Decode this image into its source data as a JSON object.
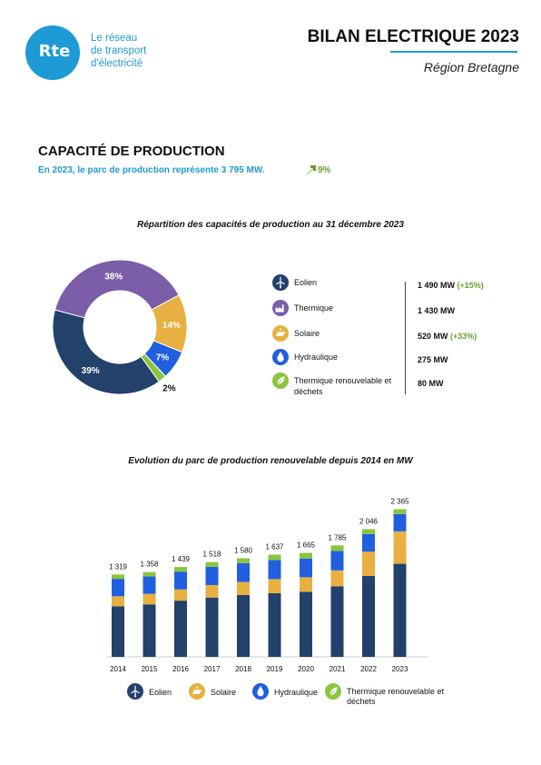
{
  "header": {
    "logo_text": "Rte",
    "org_lines": [
      "Le réseau",
      "de transport",
      "d'électricité"
    ],
    "report_title": "BILAN ELECTRIQUE 2023",
    "region": "Région Bretagne"
  },
  "section": {
    "title": "CAPACITÉ DE PRODUCTION",
    "subtitle": "En 2023, le parc de production représente 3 795 MW.",
    "trend_value": "9%",
    "trend_direction": "up"
  },
  "colors": {
    "eolien": "#22416b",
    "thermique": "#7b5ea7",
    "solaire": "#e8b040",
    "hydraulique": "#1f5fe0",
    "thermique_renouvelable": "#8dc43f",
    "accent": "#1e9ad6",
    "positive": "#6aa12d"
  },
  "capacity_legend": [
    {
      "key": "eolien",
      "label": "Eolien",
      "icon": "wind-turbine-icon",
      "value": "1 490 MW",
      "change": "(+15%)"
    },
    {
      "key": "thermique",
      "label": "Thermique",
      "icon": "factory-icon",
      "value": "1 430 MW",
      "change": ""
    },
    {
      "key": "solaire",
      "label": "Solaire",
      "icon": "solar-panel-icon",
      "value": "520 MW",
      "change": "(+33%)"
    },
    {
      "key": "hydraulique",
      "label": "Hydraulique",
      "icon": "water-drop-icon",
      "value": "275 MW",
      "change": ""
    },
    {
      "key": "thermique_renouvelable",
      "label": "Thermique renouvelable et déchets",
      "icon": "leaf-icon",
      "value": "80 MW",
      "change": ""
    }
  ],
  "chart_data": [
    {
      "type": "pie",
      "title": "Répartition des capacités de production au 31 décembre 2023",
      "donut": true,
      "slices": [
        {
          "key": "thermique",
          "label": "38%",
          "value": 38
        },
        {
          "key": "solaire",
          "label": "14%",
          "value": 14
        },
        {
          "key": "hydraulique",
          "label": "7%",
          "value": 7
        },
        {
          "key": "thermique_renouvelable",
          "label": "2%",
          "value": 2
        },
        {
          "key": "eolien",
          "label": "39%",
          "value": 39
        }
      ]
    },
    {
      "type": "bar",
      "stacked": true,
      "title": "Evolution du parc de production renouvelable depuis 2014 en MW",
      "categories": [
        "2014",
        "2015",
        "2016",
        "2017",
        "2018",
        "2019",
        "2020",
        "2021",
        "2022",
        "2023"
      ],
      "totals": [
        1319,
        1358,
        1439,
        1518,
        1580,
        1637,
        1665,
        1785,
        2046,
        2365
      ],
      "total_labels": [
        "1 319",
        "1 358",
        "1 439",
        "1 518",
        "1 580",
        "1 637",
        "1 665",
        "1 785",
        "2 046",
        "2 365"
      ],
      "series": [
        {
          "name": "Eolien",
          "key": "eolien",
          "values": [
            810,
            840,
            900,
            950,
            990,
            1020,
            1040,
            1130,
            1295,
            1490
          ]
        },
        {
          "name": "Solaire",
          "key": "solaire",
          "values": [
            160,
            170,
            180,
            200,
            210,
            225,
            235,
            255,
            390,
            520
          ]
        },
        {
          "name": "Hydraulique",
          "key": "hydraulique",
          "values": [
            279,
            278,
            285,
            290,
            300,
            305,
            300,
            310,
            281,
            275
          ]
        },
        {
          "name": "Thermique renouvelable et déchets",
          "key": "thermique_renouvelable",
          "values": [
            70,
            70,
            74,
            78,
            80,
            87,
            90,
            90,
            80,
            80
          ]
        }
      ],
      "ylim": [
        0,
        2400
      ],
      "grid": false
    }
  ],
  "bar_legend": [
    {
      "key": "eolien",
      "label": "Eolien",
      "icon": "wind-turbine-icon"
    },
    {
      "key": "solaire",
      "label": "Solaire",
      "icon": "solar-panel-icon"
    },
    {
      "key": "hydraulique",
      "label": "Hydraulique",
      "icon": "water-drop-icon"
    },
    {
      "key": "thermique_renouvelable",
      "label": "Thermique renouvelable et déchets",
      "icon": "leaf-icon"
    }
  ]
}
